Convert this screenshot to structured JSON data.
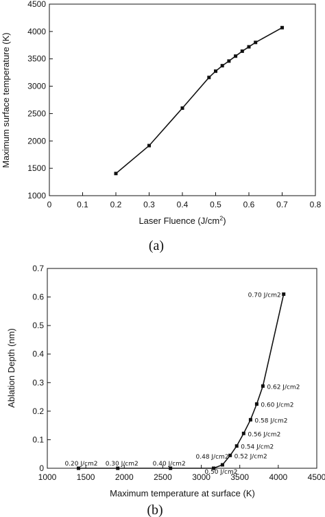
{
  "chart_data": [
    {
      "type": "line",
      "xlabel": "Laser Fluence (J/cm",
      "xlabel_sup": "2",
      "xlabel_end": ")",
      "ylabel": "Maximum surface temperature (K)",
      "xlim": [
        0,
        0.8
      ],
      "ylim": [
        1000,
        4500
      ],
      "xticks": [
        0,
        0.1,
        0.2,
        0.3,
        0.4,
        0.5,
        0.6,
        0.7,
        0.8
      ],
      "xtick_labels": [
        "0",
        "0.1",
        "0.2",
        "0.3",
        "0.4",
        "0.5",
        "0.6",
        "0.7",
        "0.8"
      ],
      "yticks": [
        1000,
        1500,
        2000,
        2500,
        3000,
        3500,
        4000,
        4500
      ],
      "ytick_labels": [
        "1000",
        "1500",
        "2000",
        "2500",
        "3000",
        "3500",
        "4000",
        "4500"
      ],
      "grid": false,
      "x": [
        0.2,
        0.3,
        0.4,
        0.48,
        0.5,
        0.52,
        0.54,
        0.56,
        0.58,
        0.6,
        0.62,
        0.7
      ],
      "y": [
        1405,
        1915,
        2600,
        3160,
        3275,
        3375,
        3460,
        3550,
        3640,
        3720,
        3800,
        4070
      ],
      "caption": "(a)"
    },
    {
      "type": "line",
      "xlabel": "Maximum temperature at surface (K)",
      "ylabel": "Ablation Depth (nm)",
      "xlim": [
        1000,
        4500
      ],
      "ylim": [
        0,
        0.7
      ],
      "xticks": [
        1000,
        1500,
        2000,
        2500,
        3000,
        3500,
        4000,
        4500
      ],
      "xtick_labels": [
        "1000",
        "1500",
        "2000",
        "2500",
        "3000",
        "3500",
        "4000",
        "4500"
      ],
      "yticks": [
        0,
        0.1,
        0.2,
        0.3,
        0.4,
        0.5,
        0.6,
        0.7
      ],
      "ytick_labels": [
        "0",
        "0.1",
        "0.2",
        "0.3",
        "0.4",
        "0.5",
        "0.6",
        "0.7"
      ],
      "grid": false,
      "x": [
        1405,
        1915,
        2600,
        3160,
        3275,
        3375,
        3460,
        3550,
        3640,
        3720,
        3800,
        4070
      ],
      "y": [
        0,
        0,
        0,
        0,
        0.012,
        0.045,
        0.078,
        0.122,
        0.17,
        0.225,
        0.288,
        0.61
      ],
      "point_labels": [
        "0.20 J/cm2",
        "0.30 J/cm2",
        "0.40 J/cm2",
        "0.48 J/cm2",
        "0.50 J/cm2",
        "0.52 J/cm2",
        "0.54 J/cm2",
        "0.56 J/cm2",
        "0.58 J/cm2",
        "0.60 J/cm2",
        "0.62 J/cm2",
        "0.70 J/cm2"
      ],
      "caption": "(b)"
    }
  ]
}
